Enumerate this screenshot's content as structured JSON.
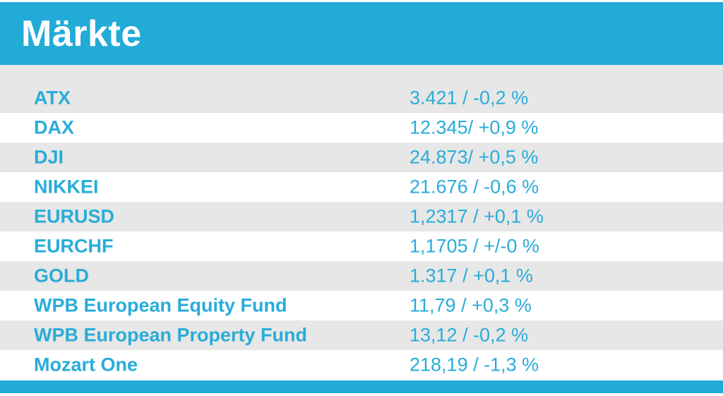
{
  "colors": {
    "accent_bar": "#22abd7",
    "row_gray": "#e7e7e7",
    "text_cyan": "#29acd9",
    "title_white": "#ffffff",
    "page_bg": "#ffffff"
  },
  "header": {
    "title": "Märkte"
  },
  "chart_data": {
    "type": "table",
    "title": "Märkte",
    "rows": [
      {
        "name": "ATX",
        "value": "3.421 / -0,2 %"
      },
      {
        "name": "DAX",
        "value": "12.345/ +0,9 %"
      },
      {
        "name": "DJI",
        "value": "24.873/ +0,5 %"
      },
      {
        "name": "NIKKEI",
        "value": "21.676 / -0,6 %"
      },
      {
        "name": "EURUSD",
        "value": "1,2317 / +0,1 %"
      },
      {
        "name": "EURCHF",
        "value": "1,1705 / +/-0 %"
      },
      {
        "name": "GOLD",
        "value": "1.317 / +0,1 %"
      },
      {
        "name": "WPB European Equity Fund",
        "value": "11,79 / +0,3 %"
      },
      {
        "name": "WPB European Property Fund",
        "value": "13,12 / -0,2 %"
      },
      {
        "name": "Mozart One",
        "value": "218,19 / -1,3 %"
      }
    ]
  }
}
